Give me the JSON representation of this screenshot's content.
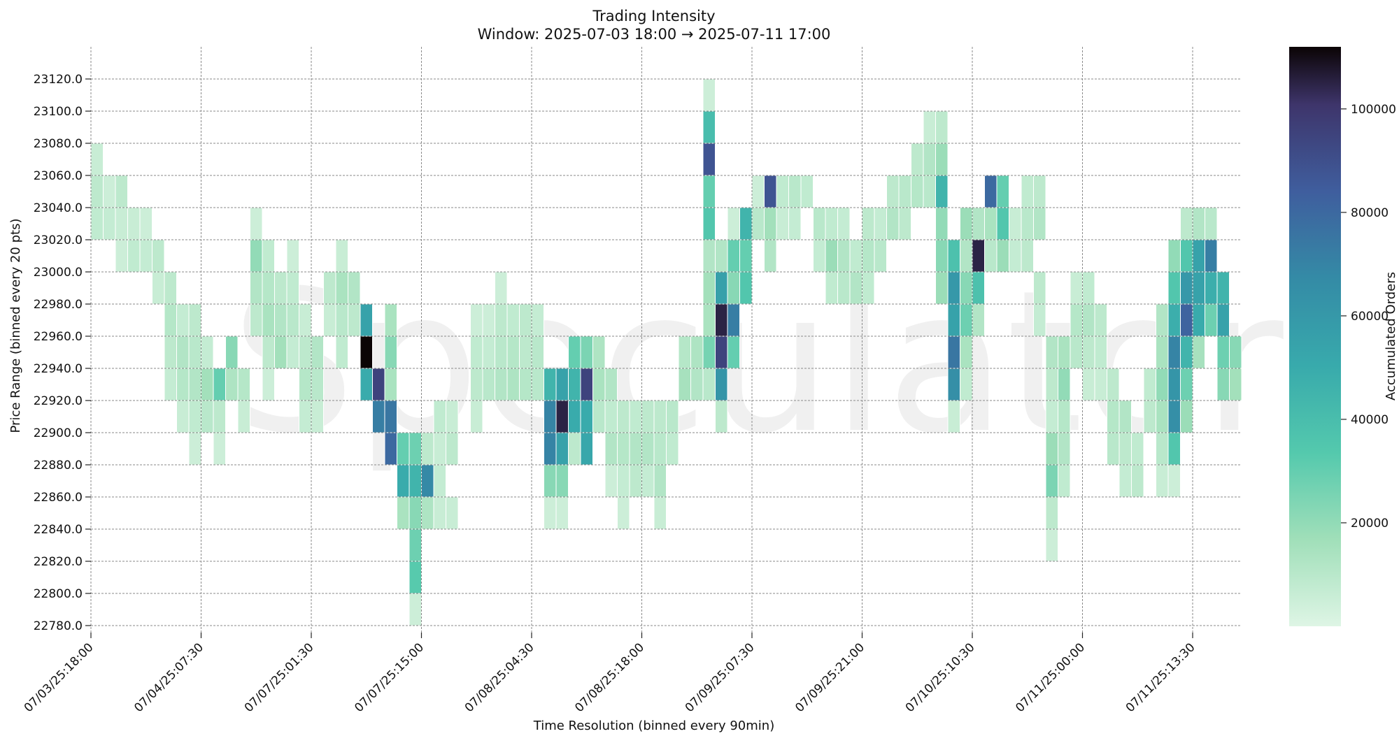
{
  "chart_data": {
    "type": "heatmap",
    "title": "Trading Intensity",
    "subtitle": "Window: 2025-07-03 18:00 → 2025-07-11 17:00",
    "xlabel": "Time Resolution (binned every 90min)",
    "ylabel": "Price Range (binned every 20 pts)",
    "colorbar_label": "Accumulated Orders",
    "watermark": "Speculator",
    "x_tick_labels": [
      "07/03/25:18:00",
      "07/04/25:07:30",
      "07/07/25:01:30",
      "07/07/25:15:00",
      "07/08/25:04:30",
      "07/08/25:18:00",
      "07/09/25:07:30",
      "07/09/25:21:00",
      "07/10/25:10:30",
      "07/11/25:00:00",
      "07/11/25:13:30"
    ],
    "x_tick_every_bins": 9,
    "n_time_bins": 94,
    "y_tick_labels": [
      "23120.0",
      "23100.0",
      "23080.0",
      "23060.0",
      "23040.0",
      "23020.0",
      "23000.0",
      "22980.0",
      "22960.0",
      "22940.0",
      "22920.0",
      "22900.0",
      "22880.0",
      "22860.0",
      "22840.0",
      "22820.0",
      "22800.0",
      "22780.0"
    ],
    "price_bins": [
      23130,
      23110,
      23090,
      23070,
      23050,
      23030,
      23010,
      22990,
      22970,
      22950,
      22930,
      22910,
      22890,
      22870,
      22850,
      22830,
      22810,
      22790,
      22770
    ],
    "colorbar_ticks": [
      "20000",
      "40000",
      "60000",
      "80000",
      "100000"
    ],
    "colorbar_range": [
      0,
      112000
    ],
    "colormap": "mako_r",
    "grid": true,
    "cells": [
      [
        0,
        3,
        6000
      ],
      [
        0,
        4,
        9000
      ],
      [
        0,
        5,
        8000
      ],
      [
        1,
        4,
        5000
      ],
      [
        1,
        5,
        7000
      ],
      [
        2,
        4,
        9000
      ],
      [
        2,
        5,
        6000
      ],
      [
        2,
        6,
        5000
      ],
      [
        3,
        5,
        6000
      ],
      [
        3,
        6,
        8000
      ],
      [
        4,
        5,
        5000
      ],
      [
        4,
        6,
        7000
      ],
      [
        5,
        6,
        9000
      ],
      [
        5,
        7,
        6000
      ],
      [
        6,
        7,
        9000
      ],
      [
        6,
        8,
        11000
      ],
      [
        6,
        9,
        9000
      ],
      [
        6,
        10,
        7000
      ],
      [
        7,
        8,
        7000
      ],
      [
        7,
        9,
        12000
      ],
      [
        7,
        10,
        11000
      ],
      [
        7,
        11,
        6000
      ],
      [
        8,
        8,
        9000
      ],
      [
        8,
        9,
        10000
      ],
      [
        8,
        10,
        12000
      ],
      [
        8,
        11,
        8000
      ],
      [
        8,
        12,
        5000
      ],
      [
        9,
        9,
        7000
      ],
      [
        9,
        10,
        16000
      ],
      [
        9,
        11,
        10000
      ],
      [
        10,
        10,
        30000
      ],
      [
        10,
        11,
        9000
      ],
      [
        10,
        12,
        5000
      ],
      [
        11,
        9,
        22000
      ],
      [
        11,
        10,
        13000
      ],
      [
        12,
        10,
        11000
      ],
      [
        12,
        11,
        6000
      ],
      [
        13,
        5,
        5000
      ],
      [
        13,
        6,
        20000
      ],
      [
        13,
        7,
        12000
      ],
      [
        13,
        8,
        9000
      ],
      [
        14,
        6,
        8000
      ],
      [
        14,
        7,
        11000
      ],
      [
        14,
        8,
        14000
      ],
      [
        14,
        9,
        9000
      ],
      [
        14,
        10,
        5000
      ],
      [
        15,
        7,
        9000
      ],
      [
        15,
        8,
        12000
      ],
      [
        15,
        9,
        16000
      ],
      [
        16,
        6,
        5000
      ],
      [
        16,
        7,
        8000
      ],
      [
        16,
        8,
        10000
      ],
      [
        16,
        9,
        7000
      ],
      [
        17,
        8,
        6000
      ],
      [
        17,
        9,
        9000
      ],
      [
        17,
        10,
        11000
      ],
      [
        17,
        11,
        7000
      ],
      [
        18,
        9,
        12000
      ],
      [
        18,
        10,
        10000
      ],
      [
        18,
        11,
        6000
      ],
      [
        19,
        7,
        9000
      ],
      [
        19,
        8,
        6000
      ],
      [
        20,
        6,
        6000
      ],
      [
        20,
        7,
        14000
      ],
      [
        20,
        8,
        10000
      ],
      [
        20,
        9,
        8000
      ],
      [
        21,
        7,
        12000
      ],
      [
        21,
        8,
        9000
      ],
      [
        22,
        8,
        55000
      ],
      [
        22,
        9,
        112000
      ],
      [
        22,
        10,
        50000
      ],
      [
        23,
        10,
        95000
      ],
      [
        23,
        11,
        72000
      ],
      [
        24,
        8,
        14000
      ],
      [
        24,
        9,
        22000
      ],
      [
        24,
        10,
        14000
      ],
      [
        24,
        11,
        75000
      ],
      [
        24,
        12,
        80000
      ],
      [
        25,
        12,
        30000
      ],
      [
        25,
        13,
        50000
      ],
      [
        25,
        14,
        14000
      ],
      [
        26,
        12,
        28000
      ],
      [
        26,
        13,
        45000
      ],
      [
        26,
        14,
        22000
      ],
      [
        26,
        15,
        28000
      ],
      [
        26,
        16,
        33000
      ],
      [
        26,
        17,
        5000
      ],
      [
        27,
        12,
        9000
      ],
      [
        27,
        13,
        68000
      ],
      [
        27,
        14,
        13000
      ],
      [
        28,
        11,
        8000
      ],
      [
        28,
        12,
        6000
      ],
      [
        28,
        13,
        7000
      ],
      [
        28,
        14,
        6000
      ],
      [
        29,
        11,
        6000
      ],
      [
        29,
        12,
        9000
      ],
      [
        29,
        14,
        6000
      ],
      [
        31,
        8,
        5000
      ],
      [
        31,
        9,
        8000
      ],
      [
        31,
        10,
        9000
      ],
      [
        31,
        11,
        6000
      ],
      [
        32,
        8,
        5000
      ],
      [
        32,
        9,
        7000
      ],
      [
        32,
        10,
        10000
      ],
      [
        33,
        7,
        5000
      ],
      [
        33,
        8,
        9000
      ],
      [
        33,
        9,
        10000
      ],
      [
        33,
        10,
        12000
      ],
      [
        34,
        8,
        8000
      ],
      [
        34,
        9,
        11000
      ],
      [
        34,
        10,
        13000
      ],
      [
        35,
        8,
        9000
      ],
      [
        35,
        9,
        9000
      ],
      [
        35,
        10,
        11000
      ],
      [
        36,
        8,
        7000
      ],
      [
        36,
        9,
        10000
      ],
      [
        36,
        10,
        10000
      ],
      [
        37,
        10,
        45000
      ],
      [
        37,
        11,
        70000
      ],
      [
        37,
        12,
        70000
      ],
      [
        37,
        13,
        22000
      ],
      [
        37,
        14,
        5000
      ],
      [
        38,
        10,
        55000
      ],
      [
        38,
        11,
        105000
      ],
      [
        38,
        12,
        55000
      ],
      [
        38,
        13,
        22000
      ],
      [
        38,
        14,
        5000
      ],
      [
        39,
        9,
        30000
      ],
      [
        39,
        10,
        45000
      ],
      [
        39,
        11,
        50000
      ],
      [
        39,
        12,
        9000
      ],
      [
        40,
        9,
        25000
      ],
      [
        40,
        10,
        95000
      ],
      [
        40,
        11,
        50000
      ],
      [
        40,
        12,
        52000
      ],
      [
        41,
        9,
        13000
      ],
      [
        41,
        10,
        14000
      ],
      [
        41,
        11,
        10000
      ],
      [
        42,
        10,
        12000
      ],
      [
        42,
        11,
        8000
      ],
      [
        42,
        12,
        12000
      ],
      [
        42,
        13,
        5000
      ],
      [
        43,
        11,
        9000
      ],
      [
        43,
        12,
        11000
      ],
      [
        43,
        13,
        7000
      ],
      [
        43,
        14,
        5000
      ],
      [
        44,
        11,
        8000
      ],
      [
        44,
        12,
        12000
      ],
      [
        44,
        13,
        9000
      ],
      [
        45,
        11,
        9000
      ],
      [
        45,
        12,
        12000
      ],
      [
        45,
        13,
        7000
      ],
      [
        46,
        11,
        9000
      ],
      [
        46,
        12,
        10000
      ],
      [
        46,
        13,
        12000
      ],
      [
        46,
        14,
        6000
      ],
      [
        47,
        11,
        10000
      ],
      [
        47,
        12,
        8000
      ],
      [
        48,
        9,
        11000
      ],
      [
        48,
        10,
        15000
      ],
      [
        49,
        9,
        13000
      ],
      [
        49,
        10,
        12000
      ],
      [
        50,
        1,
        5000
      ],
      [
        50,
        2,
        40000
      ],
      [
        50,
        3,
        88000
      ],
      [
        50,
        4,
        30000
      ],
      [
        50,
        5,
        35000
      ],
      [
        50,
        6,
        12000
      ],
      [
        50,
        7,
        16000
      ],
      [
        50,
        8,
        14000
      ],
      [
        50,
        9,
        26000
      ],
      [
        50,
        10,
        10000
      ],
      [
        51,
        6,
        12000
      ],
      [
        51,
        7,
        56000
      ],
      [
        51,
        8,
        105000
      ],
      [
        51,
        9,
        95000
      ],
      [
        51,
        10,
        62000
      ],
      [
        51,
        11,
        9000
      ],
      [
        52,
        5,
        5000
      ],
      [
        52,
        6,
        30000
      ],
      [
        52,
        7,
        22000
      ],
      [
        52,
        8,
        72000
      ],
      [
        52,
        9,
        30000
      ],
      [
        53,
        5,
        45000
      ],
      [
        53,
        6,
        30000
      ],
      [
        53,
        7,
        35000
      ],
      [
        54,
        4,
        5000
      ],
      [
        54,
        5,
        10000
      ],
      [
        55,
        4,
        88000
      ],
      [
        55,
        5,
        16000
      ],
      [
        55,
        6,
        12000
      ],
      [
        56,
        4,
        8000
      ],
      [
        56,
        5,
        6000
      ],
      [
        57,
        4,
        10000
      ],
      [
        57,
        5,
        7000
      ],
      [
        58,
        4,
        8000
      ],
      [
        59,
        5,
        10000
      ],
      [
        59,
        6,
        7000
      ],
      [
        60,
        5,
        8000
      ],
      [
        60,
        6,
        18000
      ],
      [
        60,
        7,
        8000
      ],
      [
        61,
        5,
        7000
      ],
      [
        61,
        6,
        12000
      ],
      [
        61,
        7,
        10000
      ],
      [
        62,
        6,
        8000
      ],
      [
        62,
        7,
        12000
      ],
      [
        63,
        5,
        9000
      ],
      [
        63,
        6,
        11000
      ],
      [
        63,
        7,
        8000
      ],
      [
        64,
        5,
        7000
      ],
      [
        64,
        6,
        10000
      ],
      [
        65,
        4,
        9000
      ],
      [
        65,
        5,
        12000
      ],
      [
        66,
        4,
        10000
      ],
      [
        66,
        5,
        9000
      ],
      [
        67,
        3,
        9000
      ],
      [
        67,
        4,
        11000
      ],
      [
        68,
        2,
        6000
      ],
      [
        68,
        3,
        12000
      ],
      [
        68,
        4,
        10000
      ],
      [
        69,
        2,
        9000
      ],
      [
        69,
        3,
        18000
      ],
      [
        69,
        4,
        45000
      ],
      [
        69,
        5,
        20000
      ],
      [
        69,
        6,
        22000
      ],
      [
        69,
        7,
        18000
      ],
      [
        70,
        6,
        38000
      ],
      [
        70,
        7,
        60000
      ],
      [
        70,
        8,
        55000
      ],
      [
        70,
        9,
        75000
      ],
      [
        70,
        10,
        65000
      ],
      [
        70,
        11,
        6000
      ],
      [
        71,
        5,
        18000
      ],
      [
        71,
        6,
        12000
      ],
      [
        71,
        7,
        22000
      ],
      [
        71,
        8,
        28000
      ],
      [
        71,
        9,
        14000
      ],
      [
        71,
        10,
        8000
      ],
      [
        72,
        5,
        12000
      ],
      [
        72,
        6,
        105000
      ],
      [
        72,
        7,
        38000
      ],
      [
        72,
        8,
        12000
      ],
      [
        73,
        4,
        80000
      ],
      [
        73,
        5,
        14000
      ],
      [
        73,
        6,
        10000
      ],
      [
        74,
        5,
        35000
      ],
      [
        74,
        6,
        18000
      ],
      [
        74,
        4,
        30000
      ],
      [
        75,
        5,
        6000
      ],
      [
        75,
        6,
        7000
      ],
      [
        76,
        4,
        8000
      ],
      [
        76,
        5,
        10000
      ],
      [
        76,
        6,
        9000
      ],
      [
        77,
        4,
        9000
      ],
      [
        77,
        5,
        12000
      ],
      [
        77,
        7,
        9000
      ],
      [
        77,
        8,
        7000
      ],
      [
        78,
        9,
        12000
      ],
      [
        78,
        10,
        9000
      ],
      [
        78,
        11,
        7000
      ],
      [
        78,
        12,
        18000
      ],
      [
        78,
        13,
        25000
      ],
      [
        78,
        14,
        9000
      ],
      [
        78,
        15,
        5000
      ],
      [
        79,
        9,
        14000
      ],
      [
        79,
        10,
        20000
      ],
      [
        79,
        11,
        11000
      ],
      [
        79,
        12,
        12000
      ],
      [
        79,
        13,
        8000
      ],
      [
        80,
        7,
        6000
      ],
      [
        80,
        8,
        11000
      ],
      [
        80,
        9,
        10000
      ],
      [
        81,
        7,
        8000
      ],
      [
        81,
        8,
        12000
      ],
      [
        81,
        9,
        9000
      ],
      [
        81,
        10,
        6000
      ],
      [
        82,
        8,
        9000
      ],
      [
        82,
        9,
        8000
      ],
      [
        82,
        10,
        6000
      ],
      [
        83,
        10,
        9000
      ],
      [
        83,
        11,
        11000
      ],
      [
        83,
        12,
        10000
      ],
      [
        84,
        11,
        12000
      ],
      [
        84,
        12,
        9000
      ],
      [
        84,
        13,
        7000
      ],
      [
        85,
        12,
        8000
      ],
      [
        85,
        13,
        9000
      ],
      [
        86,
        10,
        8000
      ],
      [
        86,
        11,
        9000
      ],
      [
        87,
        8,
        12000
      ],
      [
        87,
        9,
        14000
      ],
      [
        87,
        10,
        20000
      ],
      [
        87,
        11,
        14000
      ],
      [
        87,
        12,
        10000
      ],
      [
        87,
        13,
        6000
      ],
      [
        88,
        6,
        20000
      ],
      [
        88,
        7,
        35000
      ],
      [
        88,
        8,
        48000
      ],
      [
        88,
        9,
        70000
      ],
      [
        88,
        10,
        62000
      ],
      [
        88,
        11,
        65000
      ],
      [
        88,
        12,
        35000
      ],
      [
        88,
        13,
        5000
      ],
      [
        89,
        5,
        9000
      ],
      [
        89,
        6,
        35000
      ],
      [
        89,
        7,
        60000
      ],
      [
        89,
        8,
        82000
      ],
      [
        89,
        9,
        45000
      ],
      [
        89,
        10,
        28000
      ],
      [
        89,
        11,
        18000
      ],
      [
        90,
        5,
        12000
      ],
      [
        90,
        6,
        55000
      ],
      [
        90,
        7,
        55000
      ],
      [
        90,
        8,
        50000
      ],
      [
        90,
        9,
        15000
      ],
      [
        91,
        5,
        10000
      ],
      [
        91,
        6,
        72000
      ],
      [
        91,
        7,
        48000
      ],
      [
        91,
        8,
        28000
      ],
      [
        92,
        7,
        45000
      ],
      [
        92,
        8,
        55000
      ],
      [
        92,
        9,
        28000
      ],
      [
        92,
        10,
        22000
      ],
      [
        93,
        9,
        22000
      ],
      [
        93,
        10,
        16000
      ]
    ]
  }
}
